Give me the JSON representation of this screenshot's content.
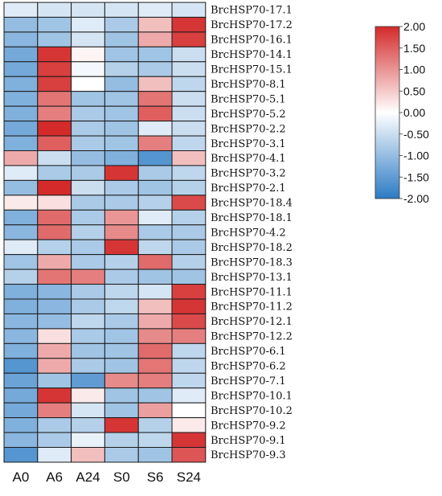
{
  "chart_data": {
    "type": "heatmap",
    "columns": [
      "A0",
      "A6",
      "A24",
      "S0",
      "S6",
      "S24"
    ],
    "rows": [
      "BrcHSP70-17.1",
      "BrcHSP70-17.2",
      "BrcHSP70-16.1",
      "BrcHSP70-14.1",
      "BrcHSP70-15.1",
      "BrcHSP70-8.1",
      "BrcHSP70-5.1",
      "BrcHSP70-5.2",
      "BrcHSP70-2.2",
      "BrcHSP70-3.1",
      "BrcHSP70-4.1",
      "BrcHSP70-3.2",
      "BrcHSP70-2.1",
      "BrcHSP70-18.4",
      "BrcHSP70-18.1",
      "BrcHSP70-4.2",
      "BrcHSP70-18.2",
      "BrcHSP70-18.3",
      "BrcHSP70-13.1",
      "BrcHSP70-11.1",
      "BrcHSP70-11.2",
      "BrcHSP70-12.1",
      "BrcHSP70-12.2",
      "BrcHSP70-6.1",
      "BrcHSP70-6.2",
      "BrcHSP70-7.1",
      "BrcHSP70-10.1",
      "BrcHSP70-10.2",
      "BrcHSP70-9.2",
      "BrcHSP70-9.1",
      "BrcHSP70-9.3"
    ],
    "values": [
      [
        -0.3,
        -0.4,
        -0.4,
        -0.4,
        -0.3,
        -0.4
      ],
      [
        -1.0,
        -0.9,
        -0.3,
        -0.8,
        0.6,
        1.9
      ],
      [
        -1.1,
        -0.9,
        -0.4,
        -0.9,
        0.8,
        1.8
      ],
      [
        -1.3,
        1.9,
        0.1,
        -0.9,
        -0.9,
        -0.5
      ],
      [
        -1.3,
        1.8,
        -0.1,
        -0.7,
        -0.8,
        -0.5
      ],
      [
        -1.2,
        1.8,
        0.0,
        -1.0,
        0.6,
        -0.6
      ],
      [
        -1.2,
        1.3,
        -0.9,
        -0.9,
        1.3,
        -0.5
      ],
      [
        -1.2,
        1.2,
        -0.8,
        -0.9,
        1.5,
        -0.5
      ],
      [
        -1.3,
        2.0,
        -0.8,
        -0.9,
        -0.3,
        -0.5
      ],
      [
        -1.2,
        1.5,
        -0.8,
        -0.9,
        1.2,
        -0.6
      ],
      [
        0.8,
        -0.5,
        -1.0,
        -1.2,
        -1.6,
        0.6
      ],
      [
        -0.3,
        -0.8,
        -0.8,
        1.9,
        -0.8,
        -0.6
      ],
      [
        -1.0,
        2.0,
        -0.5,
        -0.8,
        -0.9,
        -0.7
      ],
      [
        0.2,
        0.3,
        -0.8,
        -0.8,
        -0.7,
        1.7
      ],
      [
        -1.2,
        1.4,
        -0.8,
        1.0,
        -0.3,
        -0.7
      ],
      [
        -1.1,
        1.4,
        -0.7,
        1.1,
        -0.8,
        -0.8
      ],
      [
        -0.3,
        -0.7,
        -0.8,
        1.9,
        -0.6,
        -0.8
      ],
      [
        -0.9,
        0.8,
        -0.8,
        -0.7,
        1.4,
        -0.7
      ],
      [
        -0.7,
        1.3,
        1.2,
        -0.8,
        -0.9,
        -0.9
      ],
      [
        -1.2,
        -1.1,
        -0.8,
        -0.6,
        -0.4,
        1.8
      ],
      [
        -1.2,
        -1.1,
        -0.8,
        -0.6,
        0.6,
        1.9
      ],
      [
        -1.1,
        -1.0,
        -0.6,
        -0.8,
        0.8,
        1.7
      ],
      [
        -1.1,
        0.3,
        -0.8,
        -0.9,
        1.1,
        1.2
      ],
      [
        -1.2,
        0.8,
        -0.9,
        -0.9,
        1.4,
        -0.6
      ],
      [
        -1.6,
        0.8,
        -0.8,
        -0.9,
        1.3,
        -0.6
      ],
      [
        -1.4,
        -0.9,
        -1.5,
        1.1,
        1.2,
        -0.6
      ],
      [
        -1.3,
        1.9,
        0.2,
        -0.9,
        -0.9,
        -0.3
      ],
      [
        -1.3,
        1.2,
        -0.4,
        -0.9,
        0.9,
        0.0
      ],
      [
        -1.2,
        -0.8,
        -0.7,
        1.9,
        -0.7,
        0.2
      ],
      [
        -1.1,
        -0.8,
        -0.2,
        -0.7,
        -0.6,
        1.9
      ],
      [
        -1.6,
        -0.3,
        0.6,
        -0.8,
        -0.9,
        1.6
      ]
    ],
    "color_scale": {
      "min": -2.0,
      "max": 2.0,
      "low_color": "#2b7bc4",
      "mid_color": "#ffffff",
      "high_color": "#d42a2a",
      "ticks": [
        "2.00",
        "1.50",
        "1.00",
        "0.50",
        "0.00",
        "-0.50",
        "-1.00",
        "-1.50",
        "-2.00"
      ]
    },
    "legend_position": "top-right"
  }
}
